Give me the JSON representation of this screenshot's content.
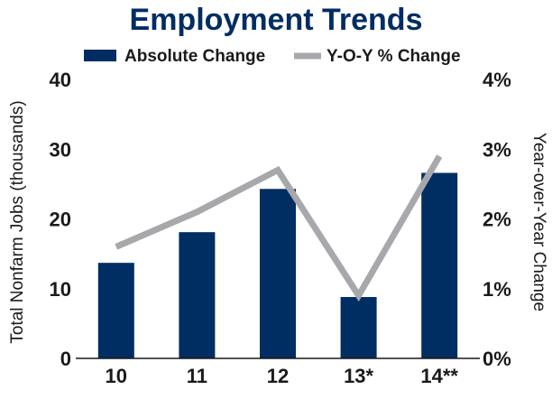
{
  "chart_data": {
    "type": "bar",
    "title": "Employment Trends",
    "categories": [
      "10",
      "11",
      "12",
      "13*",
      "14**"
    ],
    "series": [
      {
        "name": "Absolute Change",
        "type": "bar",
        "axis": "left",
        "color": "#002d62",
        "values": [
          13.7,
          18.1,
          24.3,
          8.8,
          26.6
        ]
      },
      {
        "name": "Y-O-Y % Change",
        "type": "line",
        "axis": "right",
        "color": "#a6a8ab",
        "values": [
          1.6,
          2.1,
          2.7,
          0.9,
          2.9
        ]
      }
    ],
    "ylabel": "Total Nonfarm Jobs (thousands)",
    "ylabel_right": "Year-over-Year Change",
    "ylim": [
      0,
      40
    ],
    "yticks": [
      "0",
      "10",
      "20",
      "30",
      "40"
    ],
    "ylim_right": [
      0,
      4
    ],
    "yticks_right": [
      "0%",
      "1%",
      "2%",
      "3%",
      "4%"
    ],
    "grid": false,
    "legend_position": "top"
  }
}
